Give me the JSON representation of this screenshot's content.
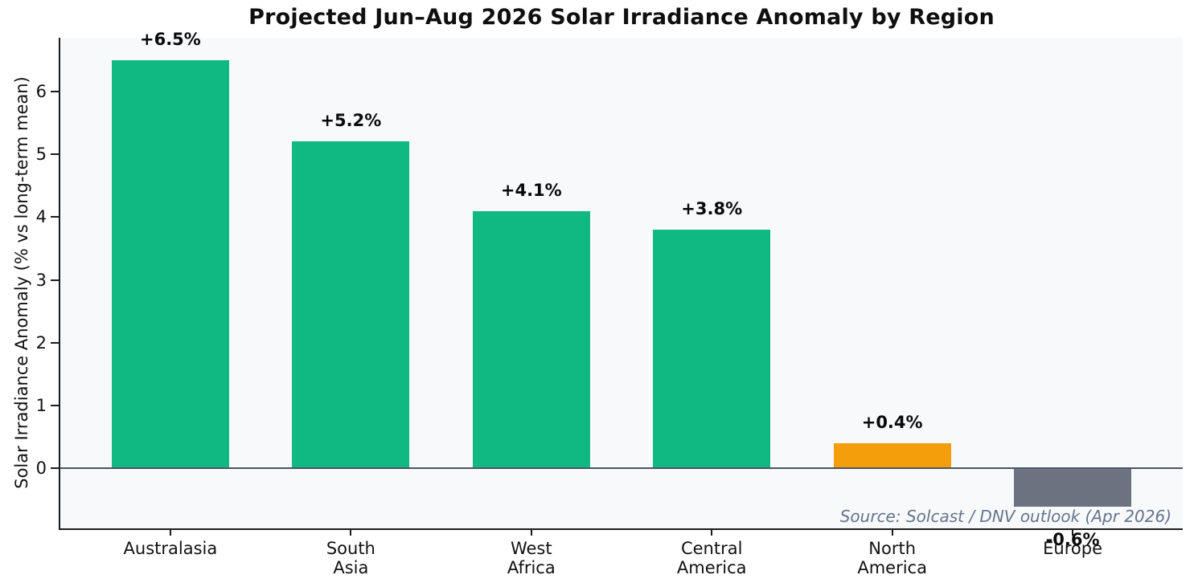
{
  "title": "Projected Jun–Aug 2026 Solar Irradiance Anomaly by Region",
  "y_axis": {
    "label": "Solar Irradiance Anomaly (% vs long-term mean)",
    "ticks": [
      "0",
      "1",
      "2",
      "3",
      "4",
      "5",
      "6"
    ]
  },
  "source_note": "Source: Solcast / DNV outlook (Apr 2026)",
  "colors": {
    "positive_bar": "#10b981",
    "north_america_bar": "#f59e0b",
    "negative_bar": "#6b7280",
    "zero_line": "#4b5563",
    "plot_background": "#f8f9fb",
    "source_text": "#64748b"
  },
  "chart_data": {
    "type": "bar",
    "title": "Projected Jun–Aug 2026 Solar Irradiance Anomaly by Region",
    "xlabel": "",
    "ylabel": "Solar Irradiance Anomaly (% vs long-term mean)",
    "categories": [
      "Australasia",
      "South\nAsia",
      "West\nAfrica",
      "Central\nAmerica",
      "North\nAmerica",
      "Europe"
    ],
    "values": [
      6.5,
      5.2,
      4.1,
      3.8,
      0.4,
      -0.6
    ],
    "bar_labels": [
      "+6.5%",
      "+5.2%",
      "+4.1%",
      "+3.8%",
      "+0.4%",
      "-0.6%"
    ],
    "bar_colors": [
      "#10b981",
      "#10b981",
      "#10b981",
      "#10b981",
      "#f59e0b",
      "#6b7280"
    ],
    "ylim": [
      -0.955,
      6.855
    ],
    "y_ticks": [
      0,
      1,
      2,
      3,
      4,
      5,
      6
    ],
    "grid": false,
    "legend": false,
    "annotation": "Source: Solcast / DNV outlook (Apr 2026)"
  }
}
